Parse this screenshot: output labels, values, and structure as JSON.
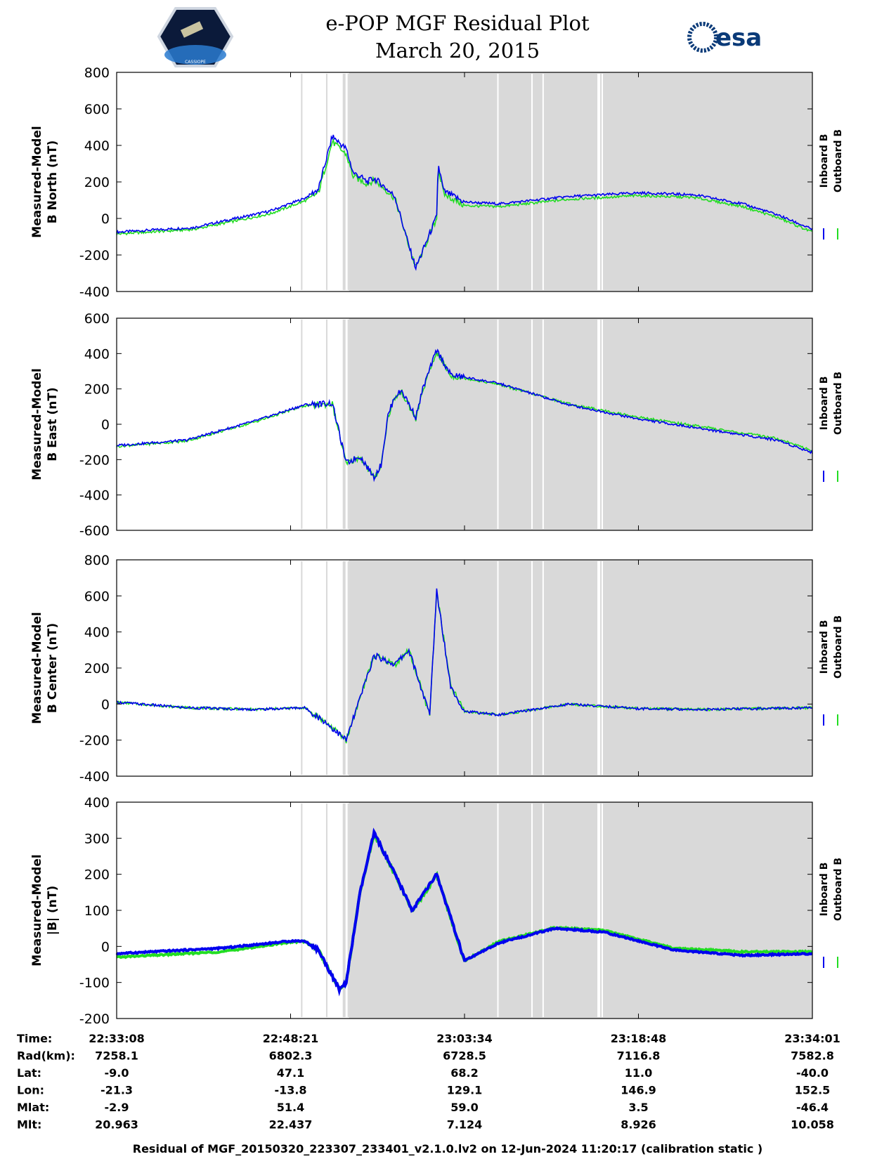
{
  "header": {
    "title_line1": "e-POP MGF Residual Plot",
    "title_line2": "March 20, 2015",
    "logo_right_text": "esa",
    "logo_left_caption": "CASSIOPE"
  },
  "legend": {
    "inboard": "Inboard B",
    "outboard": "Outboard B"
  },
  "colors": {
    "inboard": "#0000ee",
    "outboard": "#22dd22",
    "shade": "#d9d9d9"
  },
  "chart_data": [
    {
      "type": "line",
      "panel": "B North",
      "ylabel_line1": "Measured-Model",
      "ylabel_line2": "B North (nT)",
      "ylim": [
        -400,
        800
      ],
      "yticks": [
        800,
        600,
        400,
        200,
        0,
        -200,
        -400
      ],
      "x": [
        0,
        0.11,
        0.22,
        0.27,
        0.29,
        0.31,
        0.33,
        0.34,
        0.35,
        0.36,
        0.37,
        0.38,
        0.4,
        0.42,
        0.43,
        0.46,
        0.462,
        0.47,
        0.5,
        0.55,
        0.65,
        0.75,
        0.83,
        0.9,
        0.95,
        1.0
      ],
      "series": [
        {
          "name": "Inboard B",
          "values": [
            -75,
            -50,
            40,
            110,
            160,
            450,
            380,
            250,
            230,
            200,
            220,
            190,
            120,
            -150,
            -270,
            10,
            300,
            150,
            90,
            80,
            120,
            140,
            130,
            80,
            20,
            -60
          ]
        },
        {
          "name": "Outboard B",
          "values": [
            -85,
            -60,
            25,
            95,
            140,
            420,
            350,
            230,
            210,
            190,
            210,
            180,
            110,
            -150,
            -270,
            0,
            280,
            135,
            70,
            65,
            105,
            125,
            115,
            65,
            5,
            -75
          ]
        }
      ]
    },
    {
      "type": "line",
      "panel": "B East",
      "ylabel_line1": "Measured-Model",
      "ylabel_line2": "B East (nT)",
      "ylim": [
        -600,
        600
      ],
      "yticks": [
        600,
        400,
        200,
        0,
        -200,
        -400,
        -600
      ],
      "x": [
        0,
        0.1,
        0.2,
        0.27,
        0.31,
        0.33,
        0.35,
        0.37,
        0.38,
        0.39,
        0.4,
        0.41,
        0.43,
        0.44,
        0.46,
        0.48,
        0.55,
        0.65,
        0.75,
        0.85,
        0.95,
        1.0
      ],
      "series": [
        {
          "name": "Inboard B",
          "values": [
            -120,
            -90,
            20,
            110,
            120,
            -220,
            -180,
            -300,
            -230,
            50,
            160,
            190,
            40,
            200,
            420,
            280,
            230,
            110,
            30,
            -30,
            -90,
            -160
          ]
        },
        {
          "name": "Outboard B",
          "values": [
            -125,
            -95,
            15,
            105,
            115,
            -225,
            -185,
            -305,
            -235,
            40,
            150,
            180,
            30,
            190,
            410,
            275,
            225,
            115,
            40,
            -20,
            -80,
            -150
          ]
        }
      ]
    },
    {
      "type": "line",
      "panel": "B Center",
      "ylabel_line1": "Measured-Model",
      "ylabel_line2": "B Center (nT)",
      "ylim": [
        -400,
        800
      ],
      "yticks": [
        800,
        600,
        400,
        200,
        0,
        -200,
        -400
      ],
      "x": [
        0,
        0.1,
        0.2,
        0.27,
        0.3,
        0.33,
        0.37,
        0.4,
        0.42,
        0.45,
        0.46,
        0.48,
        0.5,
        0.55,
        0.65,
        0.75,
        0.85,
        1.0
      ],
      "series": [
        {
          "name": "Inboard B",
          "values": [
            10,
            -20,
            -30,
            -20,
            -100,
            -200,
            270,
            220,
            300,
            -60,
            630,
            100,
            -40,
            -60,
            0,
            -25,
            -30,
            -20
          ]
        },
        {
          "name": "Outboard B",
          "values": [
            10,
            -20,
            -30,
            -20,
            -100,
            -200,
            270,
            220,
            300,
            -60,
            630,
            100,
            -40,
            -60,
            0,
            -25,
            -30,
            -20
          ]
        }
      ]
    },
    {
      "type": "line",
      "panel": "|B|",
      "ylabel_line1": "Measured-Model",
      "ylabel_line2": "|B| (nT)",
      "ylim": [
        -200,
        400
      ],
      "yticks": [
        400,
        300,
        200,
        100,
        0,
        -100,
        -200
      ],
      "x": [
        0,
        0.15,
        0.25,
        0.27,
        0.29,
        0.32,
        0.33,
        0.35,
        0.37,
        0.4,
        0.425,
        0.46,
        0.5,
        0.55,
        0.63,
        0.7,
        0.8,
        0.9,
        1.0
      ],
      "series": [
        {
          "name": "Inboard B",
          "values": [
            -20,
            -5,
            15,
            15,
            -10,
            -120,
            -100,
            150,
            315,
            200,
            100,
            200,
            -40,
            10,
            50,
            40,
            -10,
            -25,
            -20
          ]
        },
        {
          "name": "Outboard B",
          "values": [
            -30,
            -15,
            12,
            14,
            -10,
            -120,
            -100,
            150,
            312,
            200,
            98,
            198,
            -40,
            14,
            52,
            45,
            -5,
            -15,
            -15
          ]
        }
      ]
    }
  ],
  "time_axis": {
    "rows": [
      {
        "label": "Time:",
        "values": [
          "22:33:08",
          "22:48:21",
          "23:03:34",
          "23:18:48",
          "23:34:01"
        ]
      },
      {
        "label": "Rad(km):",
        "values": [
          "7258.1",
          "6802.3",
          "6728.5",
          "7116.8",
          "7582.8"
        ]
      },
      {
        "label": "Lat:",
        "values": [
          "-9.0",
          "47.1",
          "68.2",
          "11.0",
          "-40.0"
        ]
      },
      {
        "label": "Lon:",
        "values": [
          "-21.3",
          "-13.8",
          "129.1",
          "146.9",
          "152.5"
        ]
      },
      {
        "label": "Mlat:",
        "values": [
          "-2.9",
          "51.4",
          "59.0",
          "3.5",
          "-46.4"
        ]
      },
      {
        "label": "Mlt:",
        "values": [
          "20.963",
          "22.437",
          "7.124",
          "8.926",
          "10.058"
        ]
      }
    ]
  },
  "shading": {
    "lines": [
      0.266,
      0.302,
      0.327,
      0.333,
      0.548,
      0.597,
      0.613,
      0.693,
      0.698
    ],
    "band": [
      0.334,
      1.0
    ]
  },
  "footer": "Residual of MGF_20150320_223307_233401_v2.1.0.lv2 on 12-Jun-2024 11:20:17 (calibration static )"
}
